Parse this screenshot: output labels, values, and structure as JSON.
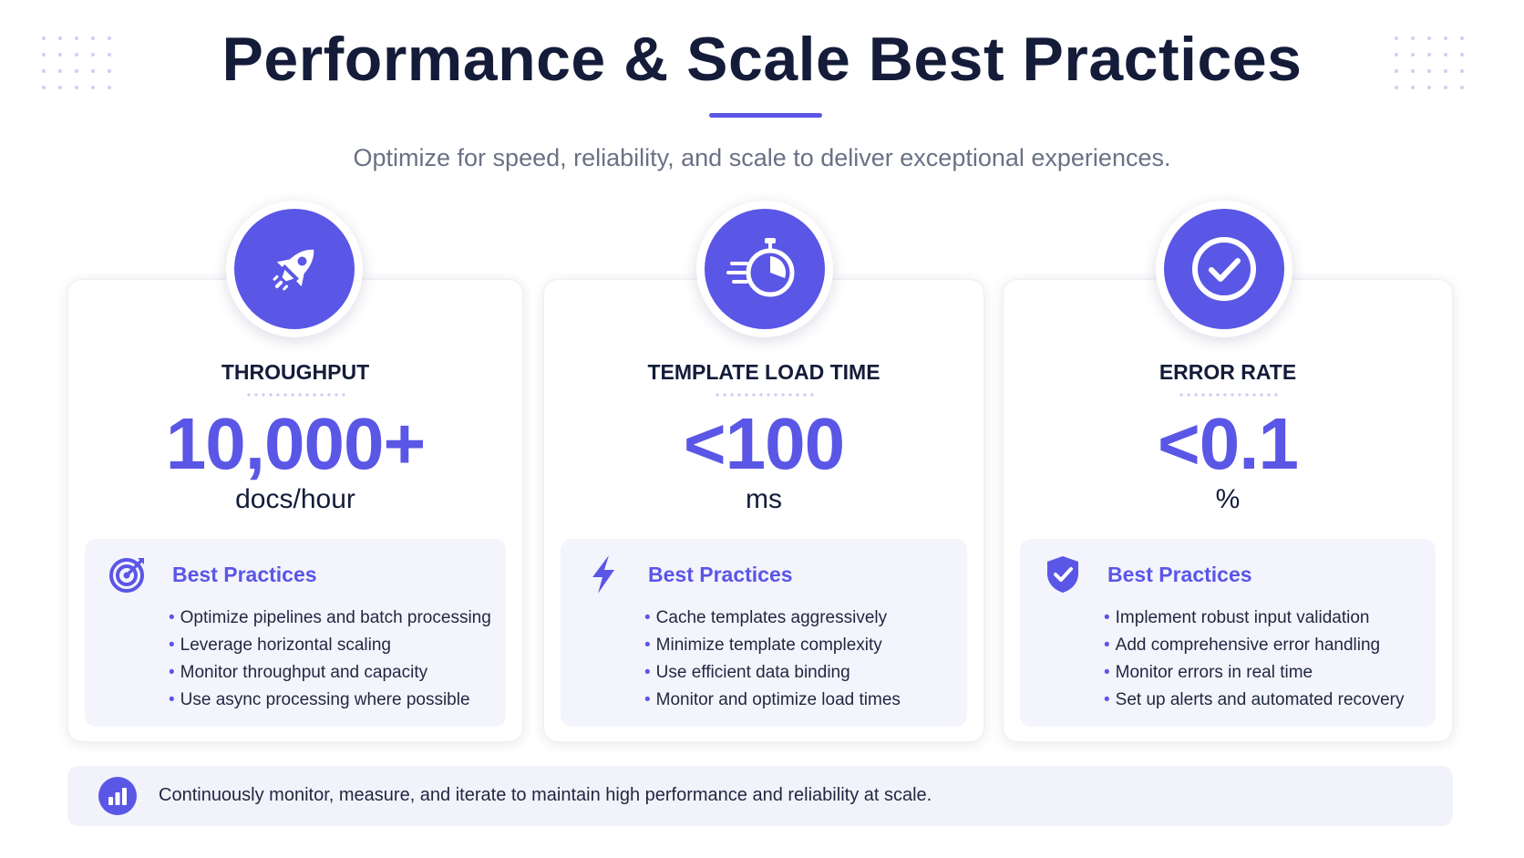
{
  "header": {
    "title": "Performance & Scale Best Practices",
    "subtitle": "Optimize for speed, reliability, and scale to deliver exceptional experiences."
  },
  "colors": {
    "accent": "#5a56e6",
    "heading": "#141c3a",
    "panel_bg": "#f4f4fd"
  },
  "cards": [
    {
      "icon": "rocket-icon",
      "label": "THROUGHPUT",
      "value": "10,000+",
      "unit": "docs/hour",
      "bp_icon": "target-icon",
      "bp_title": "Best Practices",
      "items": [
        "Optimize pipelines and batch processing",
        "Leverage horizontal scaling",
        "Monitor throughput and capacity",
        "Use async processing where possible"
      ]
    },
    {
      "icon": "stopwatch-icon",
      "label": "TEMPLATE LOAD TIME",
      "value": "<100",
      "unit": "ms",
      "bp_icon": "lightning-icon",
      "bp_title": "Best Practices",
      "items": [
        "Cache templates aggressively",
        "Minimize template complexity",
        "Use efficient data binding",
        "Monitor and optimize load times"
      ]
    },
    {
      "icon": "check-circle-icon",
      "label": "ERROR RATE",
      "value": "<0.1",
      "unit": "%",
      "bp_icon": "shield-check-icon",
      "bp_title": "Best Practices",
      "items": [
        "Implement robust input validation",
        "Add comprehensive error handling",
        "Monitor errors in real time",
        "Set up alerts and automated recovery"
      ]
    }
  ],
  "footer": {
    "icon": "bar-chart-icon",
    "text": "Continuously monitor, measure, and iterate to maintain high performance and reliability at scale."
  }
}
